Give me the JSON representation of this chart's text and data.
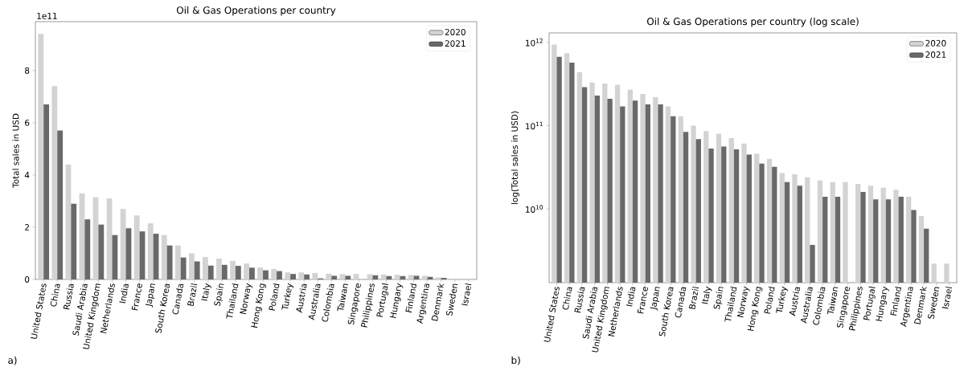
{
  "chart_data": [
    {
      "type": "bar",
      "title": "Oil & Gas Operations per country",
      "ylabel": "Total sales in USD",
      "annotations": [
        "1e11",
        "a)"
      ],
      "legend": "top right",
      "categories": [
        "United States",
        "China",
        "Russia",
        "Saudi Arabia",
        "United Kingdom",
        "Netherlands",
        "India",
        "France",
        "Japan",
        "South Korea",
        "Canada",
        "Brazil",
        "Italy",
        "Spain",
        "Thailand",
        "Norway",
        "Hong Kong",
        "Poland",
        "Turkey",
        "Austria",
        "Australia",
        "Colombia",
        "Taiwan",
        "Singapore",
        "Philippines",
        "Portugal",
        "Hungary",
        "Finland",
        "Argentina",
        "Denmark",
        "Sweden",
        "Israel"
      ],
      "series": [
        {
          "name": "2020",
          "color": "#d3d3d3",
          "values": [
            9.4,
            7.4,
            4.4,
            3.3,
            3.15,
            3.1,
            2.7,
            2.45,
            2.15,
            1.7,
            1.3,
            1.0,
            0.86,
            0.8,
            0.71,
            0.61,
            0.46,
            0.4,
            0.27,
            0.27,
            0.25,
            0.22,
            0.21,
            0.21,
            0.2,
            0.19,
            0.18,
            0.17,
            0.14,
            0.08,
            0.02,
            0.02
          ]
        },
        {
          "name": "2021",
          "color": "#696969",
          "values": [
            6.7,
            5.7,
            2.9,
            2.3,
            2.1,
            1.7,
            1.96,
            1.84,
            1.75,
            1.3,
            0.84,
            0.69,
            0.53,
            0.56,
            0.52,
            0.45,
            0.35,
            0.32,
            0.21,
            0.19,
            0.04,
            0.14,
            0.14,
            null,
            0.16,
            0.13,
            0.13,
            0.14,
            0.1,
            0.06,
            null,
            null
          ]
        }
      ],
      "ylim": [
        0,
        9.87
      ],
      "yticks": [
        0,
        2,
        4,
        6,
        8
      ]
    },
    {
      "type": "bar",
      "title": "Oil & Gas Operations per country (log scale)",
      "ylabel": "log(Total sales in USD)",
      "annotations": [
        "b)"
      ],
      "legend": "top right",
      "log": true,
      "categories": [
        "United States",
        "China",
        "Russia",
        "Saudi Arabia",
        "United Kingdom",
        "Netherlands",
        "India",
        "France",
        "Japan",
        "South Korea",
        "Canada",
        "Brazil",
        "Italy",
        "Spain",
        "Thailand",
        "Norway",
        "Hong Kong",
        "Poland",
        "Turkey",
        "Austria",
        "Australia",
        "Colombia",
        "Taiwan",
        "Singapore",
        "Philippines",
        "Portugal",
        "Hungary",
        "Finland",
        "Argentina",
        "Denmark",
        "Sweden",
        "Israel"
      ],
      "series": [
        {
          "name": "2020",
          "color": "#d3d3d3",
          "values": [
            940000000000.0,
            740000000000.0,
            440000000000.0,
            330000000000.0,
            320000000000.0,
            310000000000.0,
            270000000000.0,
            240000000000.0,
            220000000000.0,
            170000000000.0,
            130000000000.0,
            100000000000.0,
            86000000000.0,
            80000000000.0,
            71000000000.0,
            61000000000.0,
            46000000000.0,
            40000000000.0,
            27000000000.0,
            26000000000.0,
            24000000000.0,
            22000000000.0,
            21000000000.0,
            21000000000.0,
            20000000000.0,
            19000000000.0,
            18000000000.0,
            17000000000.0,
            14000000000.0,
            8200000000.0,
            2200000000.0,
            2200000000.0
          ]
        },
        {
          "name": "2021",
          "color": "#696969",
          "values": [
            670000000000.0,
            570000000000.0,
            290000000000.0,
            230000000000.0,
            210000000000.0,
            170000000000.0,
            200000000000.0,
            180000000000.0,
            180000000000.0,
            130000000000.0,
            84000000000.0,
            69000000000.0,
            53000000000.0,
            56000000000.0,
            52000000000.0,
            45000000000.0,
            35000000000.0,
            32000000000.0,
            21000000000.0,
            19000000000.0,
            3700000000.0,
            14000000000.0,
            14000000000.0,
            null,
            16000000000.0,
            13000000000.0,
            13000000000.0,
            14000000000.0,
            9700000000.0,
            5800000000.0,
            null,
            null
          ]
        }
      ],
      "ylim": [
        1300000000.0,
        1300000000000.0
      ],
      "yticks": [
        {
          "value": 10000000000.0,
          "label": "10$^{10}$"
        },
        {
          "value": 100000000000.0,
          "label": "10$^{11}$"
        },
        {
          "value": 1000000000000.0,
          "label": "10$^{12}$"
        }
      ]
    }
  ]
}
